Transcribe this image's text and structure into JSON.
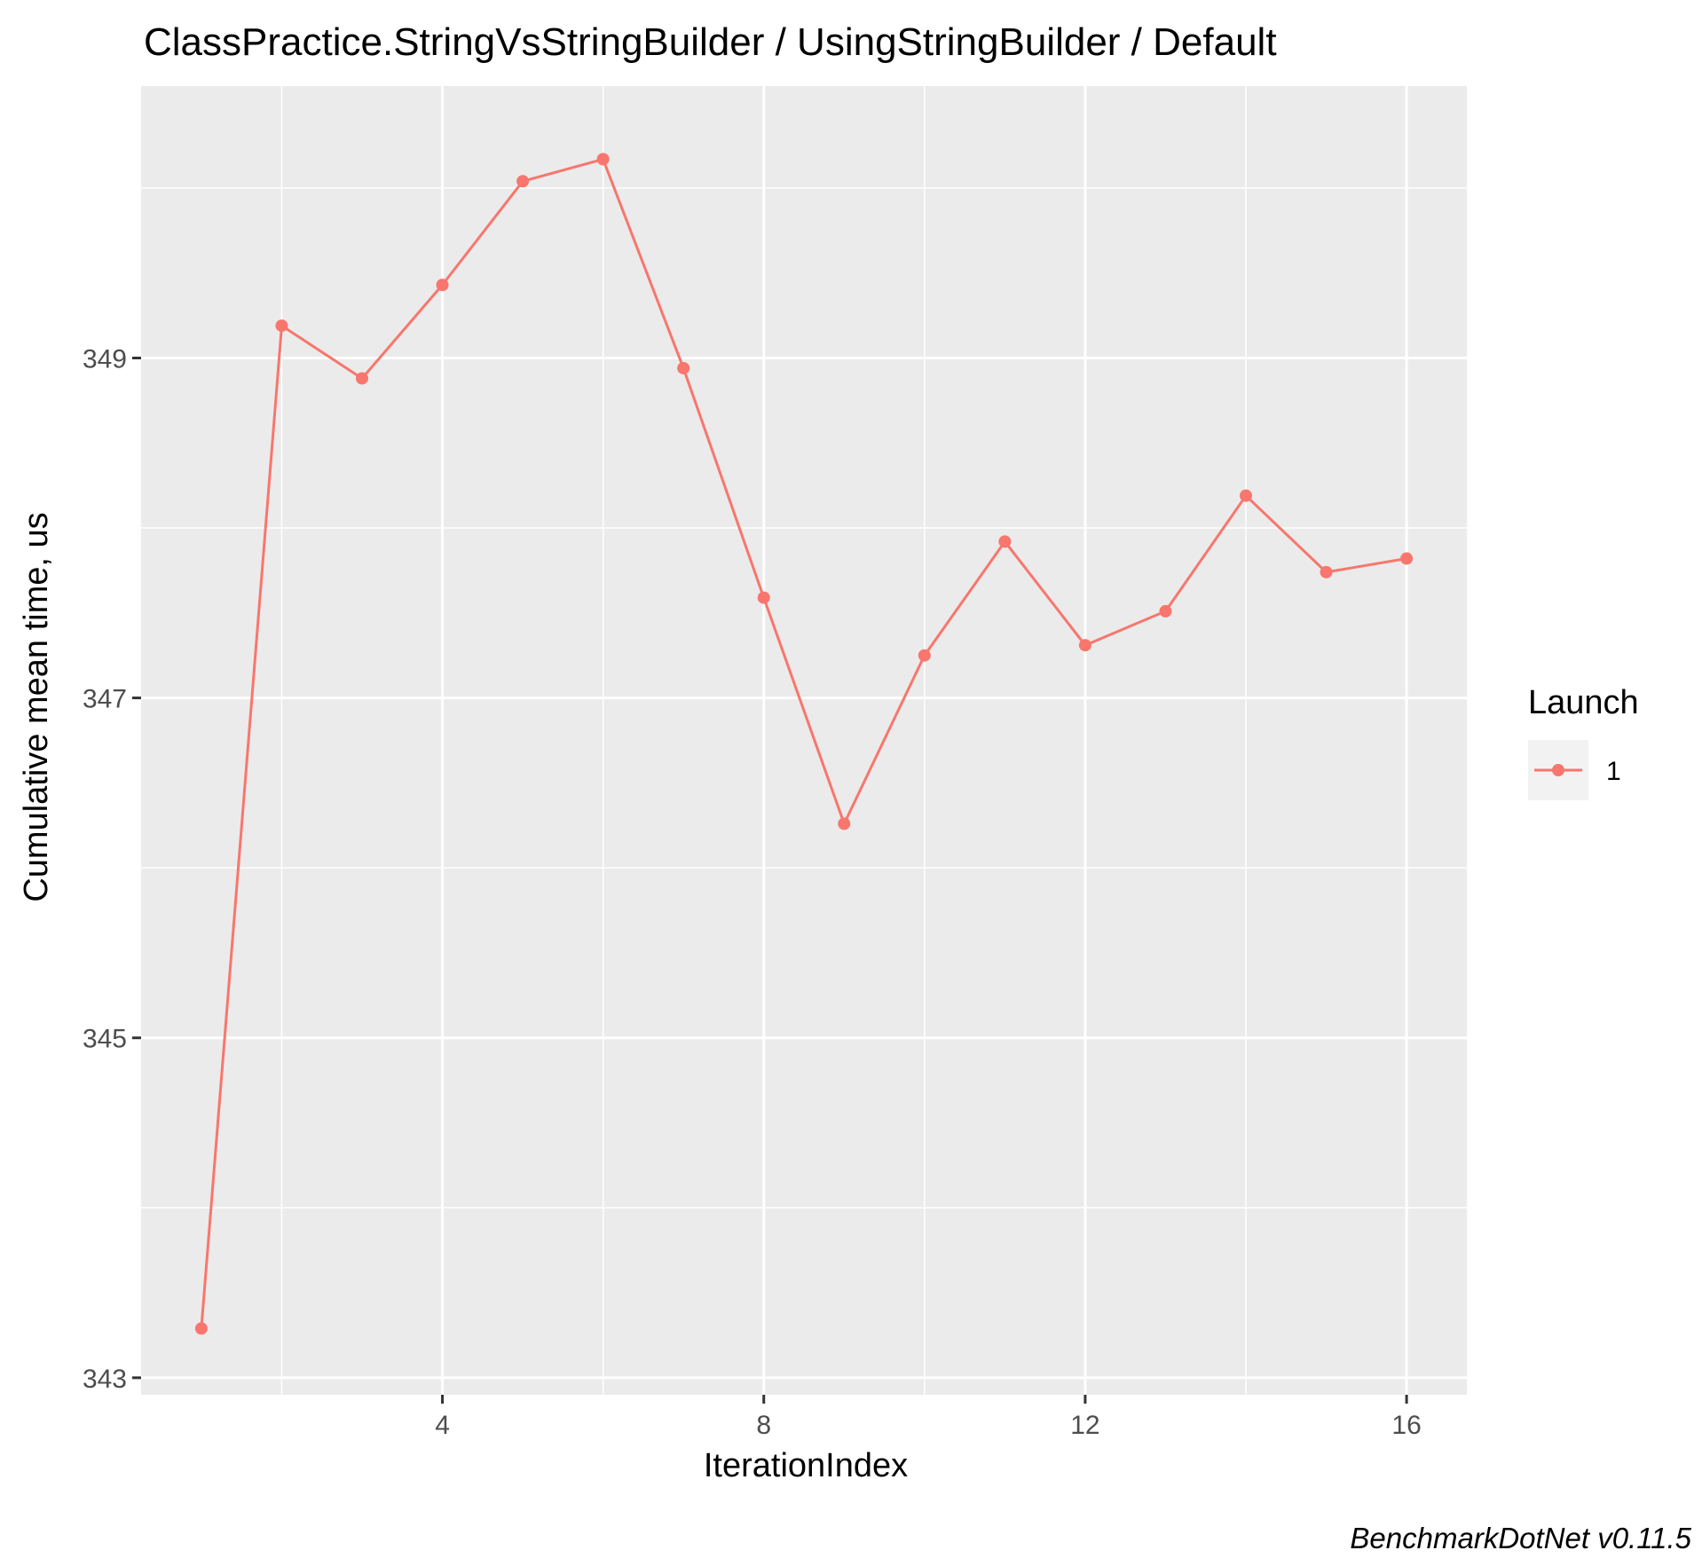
{
  "chart_data": {
    "type": "line",
    "title": "ClassPractice.StringVsStringBuilder / UsingStringBuilder / Default",
    "xlabel": "IterationIndex",
    "ylabel": "Cumulative mean time, us",
    "caption": "BenchmarkDotNet v0.11.5",
    "xlim": [
      0.25,
      16.75
    ],
    "ylim": [
      342.9,
      350.6
    ],
    "x_ticks": [
      4,
      8,
      12,
      16
    ],
    "x_minor_ticks": [
      2,
      6,
      10,
      14
    ],
    "y_ticks": [
      343,
      345,
      347,
      349
    ],
    "y_minor_ticks": [
      344,
      346,
      348,
      350
    ],
    "grid": true,
    "legend": {
      "title": "Launch",
      "position": "right",
      "entries": [
        "1"
      ]
    },
    "series": [
      {
        "name": "1",
        "color": "#f8766d",
        "x": [
          1,
          2,
          3,
          4,
          5,
          6,
          7,
          8,
          9,
          10,
          11,
          12,
          13,
          14,
          15,
          16
        ],
        "y": [
          343.29,
          349.19,
          348.88,
          349.43,
          350.04,
          350.17,
          348.94,
          347.59,
          346.26,
          347.25,
          347.92,
          347.31,
          347.51,
          348.19,
          347.74,
          347.82
        ]
      }
    ]
  }
}
